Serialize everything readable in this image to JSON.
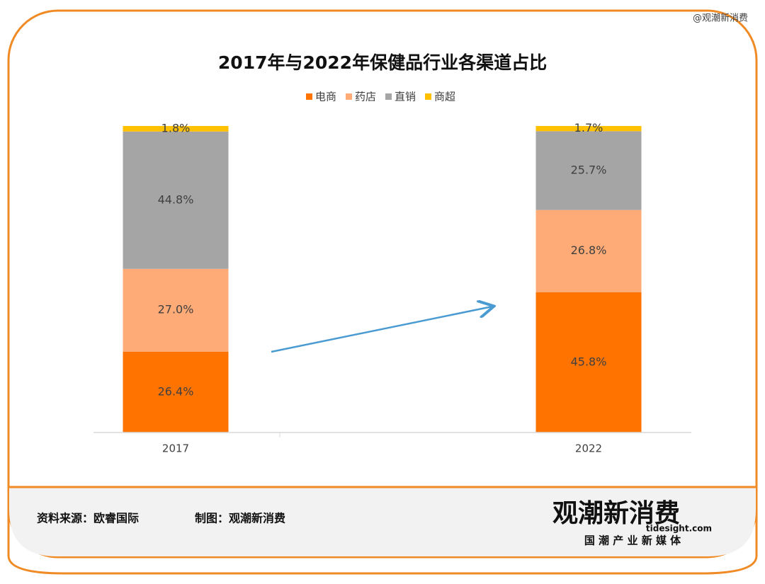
{
  "chart_data": {
    "type": "stacked_bar",
    "title": "2017年与2022年保健品行业各渠道占比",
    "categories": [
      "2017",
      "2022"
    ],
    "series": [
      {
        "name": "电商",
        "color": "#ff7300",
        "values": [
          26.4,
          45.8
        ],
        "value_labels": [
          "26.4%",
          "45.8%"
        ]
      },
      {
        "name": "药店",
        "color": "#ffab78",
        "values": [
          27.0,
          26.8
        ],
        "value_labels": [
          "27.0%",
          "26.8%"
        ]
      },
      {
        "name": "直销",
        "color": "#a5a5a5",
        "values": [
          44.8,
          25.7
        ],
        "value_labels": [
          "44.8%",
          "25.7%"
        ]
      },
      {
        "name": "商超",
        "color": "#ffc000",
        "values": [
          1.8,
          1.7
        ],
        "value_labels": [
          "1.8%",
          "1.7%"
        ]
      }
    ]
  },
  "watermark": "@观潮新消费",
  "footer": {
    "source": "资料来源：欧睿国际",
    "credit": "制图：观潮新消费"
  },
  "logo": {
    "name": "观潮新消费",
    "site": "tidesight.com",
    "slogan": "国 潮 产 业 新 媒 体"
  }
}
